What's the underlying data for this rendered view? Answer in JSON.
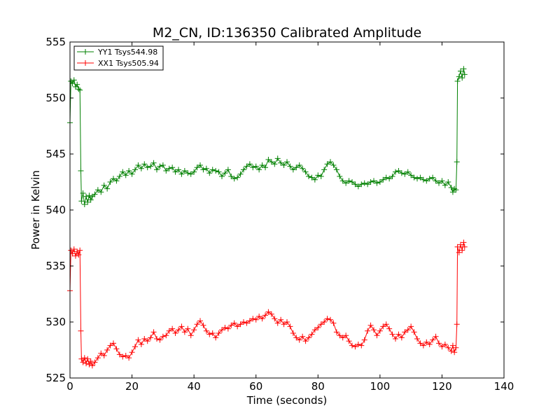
{
  "chart_data": {
    "type": "line",
    "title": "M2_CN, ID:136350 Calibrated Amplitude",
    "xlabel": "Time (seconds)",
    "ylabel": "Power in Kelvin",
    "xlim": [
      0,
      140
    ],
    "ylim": [
      525,
      555
    ],
    "xticks": [
      0,
      20,
      40,
      60,
      80,
      100,
      120,
      140
    ],
    "yticks": [
      525,
      530,
      535,
      540,
      545,
      550,
      555
    ],
    "grid": false,
    "legend_position": "top-left",
    "marker": "plus",
    "series": [
      {
        "name": "YY1 Tsys544.98",
        "color": "#008000",
        "points": [
          [
            0.0,
            547.8
          ],
          [
            0.3,
            551.5
          ],
          [
            0.8,
            551.3
          ],
          [
            1.3,
            551.6
          ],
          [
            1.8,
            551.0
          ],
          [
            2.3,
            551.2
          ],
          [
            2.8,
            550.8
          ],
          [
            3.2,
            550.7
          ],
          [
            3.5,
            543.5
          ],
          [
            3.7,
            540.8
          ],
          [
            4.2,
            541.5
          ],
          [
            4.7,
            540.5
          ],
          [
            5.2,
            541.2
          ],
          [
            5.7,
            540.7
          ],
          [
            6.2,
            541.3
          ],
          [
            6.7,
            540.9
          ],
          [
            7.2,
            541.2
          ],
          [
            8.0,
            541.4
          ],
          [
            9.0,
            541.8
          ],
          [
            10.0,
            541.6
          ],
          [
            11.0,
            542.2
          ],
          [
            12.0,
            541.9
          ],
          [
            13.0,
            542.5
          ],
          [
            14.0,
            542.8
          ],
          [
            15.0,
            542.6
          ],
          [
            16.0,
            543.0
          ],
          [
            17.0,
            543.4
          ],
          [
            18.0,
            543.1
          ],
          [
            19.0,
            543.5
          ],
          [
            20.0,
            543.2
          ],
          [
            21.0,
            543.6
          ],
          [
            22.0,
            544.0
          ],
          [
            23.0,
            543.7
          ],
          [
            24.0,
            544.1
          ],
          [
            25.0,
            543.8
          ],
          [
            26.0,
            543.9
          ],
          [
            27.0,
            544.2
          ],
          [
            28.0,
            543.6
          ],
          [
            29.0,
            543.9
          ],
          [
            30.0,
            544.0
          ],
          [
            31.0,
            543.5
          ],
          [
            32.0,
            543.7
          ],
          [
            33.0,
            543.8
          ],
          [
            34.0,
            543.4
          ],
          [
            35.0,
            543.6
          ],
          [
            36.0,
            543.2
          ],
          [
            37.0,
            543.5
          ],
          [
            38.0,
            543.3
          ],
          [
            39.0,
            543.2
          ],
          [
            40.0,
            543.4
          ],
          [
            41.0,
            543.8
          ],
          [
            42.0,
            544.0
          ],
          [
            43.0,
            543.6
          ],
          [
            44.0,
            543.7
          ],
          [
            45.0,
            543.3
          ],
          [
            46.0,
            543.6
          ],
          [
            47.0,
            543.5
          ],
          [
            48.0,
            543.4
          ],
          [
            49.0,
            543.0
          ],
          [
            50.0,
            543.3
          ],
          [
            51.0,
            543.6
          ],
          [
            52.0,
            543.0
          ],
          [
            53.0,
            542.8
          ],
          [
            54.0,
            542.9
          ],
          [
            55.0,
            543.2
          ],
          [
            56.0,
            543.6
          ],
          [
            57.0,
            543.9
          ],
          [
            58.0,
            544.1
          ],
          [
            59.0,
            543.8
          ],
          [
            60.0,
            543.9
          ],
          [
            61.0,
            543.6
          ],
          [
            62.0,
            544.0
          ],
          [
            63.0,
            543.8
          ],
          [
            64.0,
            544.5
          ],
          [
            65.0,
            544.3
          ],
          [
            66.0,
            544.1
          ],
          [
            67.0,
            544.6
          ],
          [
            68.0,
            544.2
          ],
          [
            69.0,
            544.0
          ],
          [
            70.0,
            544.3
          ],
          [
            71.0,
            543.9
          ],
          [
            72.0,
            543.6
          ],
          [
            73.0,
            543.8
          ],
          [
            74.0,
            544.0
          ],
          [
            75.0,
            543.7
          ],
          [
            76.0,
            543.4
          ],
          [
            77.0,
            543.0
          ],
          [
            78.0,
            542.9
          ],
          [
            79.0,
            542.7
          ],
          [
            80.0,
            543.1
          ],
          [
            81.0,
            543.0
          ],
          [
            82.0,
            543.6
          ],
          [
            83.0,
            544.1
          ],
          [
            84.0,
            544.3
          ],
          [
            85.0,
            544.0
          ],
          [
            86.0,
            543.6
          ],
          [
            87.0,
            543.0
          ],
          [
            88.0,
            542.6
          ],
          [
            89.0,
            542.4
          ],
          [
            90.0,
            542.6
          ],
          [
            91.0,
            542.5
          ],
          [
            92.0,
            542.3
          ],
          [
            93.0,
            542.1
          ],
          [
            94.0,
            542.3
          ],
          [
            95.0,
            542.4
          ],
          [
            96.0,
            542.3
          ],
          [
            97.0,
            542.5
          ],
          [
            98.0,
            542.6
          ],
          [
            99.0,
            542.4
          ],
          [
            100.0,
            542.5
          ],
          [
            101.0,
            542.7
          ],
          [
            102.0,
            542.9
          ],
          [
            103.0,
            542.8
          ],
          [
            104.0,
            543.0
          ],
          [
            105.0,
            543.4
          ],
          [
            106.0,
            543.5
          ],
          [
            107.0,
            543.3
          ],
          [
            108.0,
            543.2
          ],
          [
            109.0,
            543.4
          ],
          [
            110.0,
            543.1
          ],
          [
            111.0,
            542.9
          ],
          [
            112.0,
            542.8
          ],
          [
            113.0,
            542.9
          ],
          [
            114.0,
            542.7
          ],
          [
            115.0,
            542.6
          ],
          [
            116.0,
            542.8
          ],
          [
            117.0,
            542.9
          ],
          [
            118.0,
            542.6
          ],
          [
            119.0,
            542.4
          ],
          [
            120.0,
            542.6
          ],
          [
            121.0,
            542.2
          ],
          [
            122.0,
            542.5
          ],
          [
            123.0,
            542.0
          ],
          [
            123.5,
            541.6
          ],
          [
            124.0,
            541.9
          ],
          [
            124.5,
            541.8
          ],
          [
            124.8,
            544.3
          ],
          [
            125.0,
            551.5
          ],
          [
            125.5,
            551.9
          ],
          [
            126.0,
            552.4
          ],
          [
            126.5,
            551.8
          ],
          [
            127.0,
            552.6
          ],
          [
            127.3,
            552.1
          ]
        ]
      },
      {
        "name": "XX1 Tsys505.94",
        "color": "#ff0000",
        "points": [
          [
            0.0,
            532.8
          ],
          [
            0.3,
            536.4
          ],
          [
            0.8,
            536.1
          ],
          [
            1.3,
            536.5
          ],
          [
            1.8,
            535.9
          ],
          [
            2.3,
            536.3
          ],
          [
            2.8,
            536.0
          ],
          [
            3.2,
            536.4
          ],
          [
            3.5,
            529.2
          ],
          [
            3.7,
            526.7
          ],
          [
            4.2,
            526.4
          ],
          [
            4.7,
            526.8
          ],
          [
            5.2,
            526.3
          ],
          [
            5.7,
            526.7
          ],
          [
            6.2,
            526.2
          ],
          [
            6.7,
            526.5
          ],
          [
            7.2,
            526.1
          ],
          [
            8.0,
            526.4
          ],
          [
            9.0,
            526.8
          ],
          [
            10.0,
            527.2
          ],
          [
            11.0,
            527.0
          ],
          [
            12.0,
            527.5
          ],
          [
            13.0,
            527.9
          ],
          [
            14.0,
            528.1
          ],
          [
            15.0,
            527.6
          ],
          [
            16.0,
            527.1
          ],
          [
            17.0,
            526.9
          ],
          [
            18.0,
            527.0
          ],
          [
            19.0,
            526.8
          ],
          [
            20.0,
            527.3
          ],
          [
            21.0,
            527.8
          ],
          [
            22.0,
            528.4
          ],
          [
            23.0,
            528.0
          ],
          [
            24.0,
            528.5
          ],
          [
            25.0,
            528.3
          ],
          [
            26.0,
            528.6
          ],
          [
            27.0,
            529.1
          ],
          [
            28.0,
            528.5
          ],
          [
            29.0,
            528.4
          ],
          [
            30.0,
            528.7
          ],
          [
            31.0,
            528.8
          ],
          [
            32.0,
            529.2
          ],
          [
            33.0,
            529.4
          ],
          [
            34.0,
            529.0
          ],
          [
            35.0,
            529.3
          ],
          [
            36.0,
            529.6
          ],
          [
            37.0,
            529.1
          ],
          [
            38.0,
            529.4
          ],
          [
            39.0,
            528.8
          ],
          [
            40.0,
            529.3
          ],
          [
            41.0,
            529.8
          ],
          [
            42.0,
            530.1
          ],
          [
            43.0,
            529.7
          ],
          [
            44.0,
            529.2
          ],
          [
            45.0,
            528.9
          ],
          [
            46.0,
            529.0
          ],
          [
            47.0,
            528.6
          ],
          [
            48.0,
            529.0
          ],
          [
            49.0,
            529.3
          ],
          [
            50.0,
            529.5
          ],
          [
            51.0,
            529.4
          ],
          [
            52.0,
            529.7
          ],
          [
            53.0,
            529.9
          ],
          [
            54.0,
            529.6
          ],
          [
            55.0,
            529.8
          ],
          [
            56.0,
            530.0
          ],
          [
            57.0,
            529.9
          ],
          [
            58.0,
            530.1
          ],
          [
            59.0,
            530.3
          ],
          [
            60.0,
            530.2
          ],
          [
            61.0,
            530.5
          ],
          [
            62.0,
            530.3
          ],
          [
            63.0,
            530.6
          ],
          [
            64.0,
            530.9
          ],
          [
            65.0,
            530.7
          ],
          [
            66.0,
            530.3
          ],
          [
            67.0,
            529.9
          ],
          [
            68.0,
            530.2
          ],
          [
            69.0,
            529.8
          ],
          [
            70.0,
            530.0
          ],
          [
            71.0,
            529.6
          ],
          [
            72.0,
            529.0
          ],
          [
            73.0,
            528.6
          ],
          [
            74.0,
            528.4
          ],
          [
            75.0,
            528.7
          ],
          [
            76.0,
            528.3
          ],
          [
            77.0,
            528.6
          ],
          [
            78.0,
            528.9
          ],
          [
            79.0,
            529.3
          ],
          [
            80.0,
            529.5
          ],
          [
            81.0,
            529.8
          ],
          [
            82.0,
            530.0
          ],
          [
            83.0,
            530.3
          ],
          [
            84.0,
            530.2
          ],
          [
            85.0,
            529.9
          ],
          [
            86.0,
            529.1
          ],
          [
            87.0,
            528.8
          ],
          [
            88.0,
            528.6
          ],
          [
            89.0,
            528.8
          ],
          [
            90.0,
            528.3
          ],
          [
            91.0,
            527.9
          ],
          [
            92.0,
            527.8
          ],
          [
            93.0,
            528.0
          ],
          [
            94.0,
            527.9
          ],
          [
            95.0,
            528.4
          ],
          [
            96.0,
            529.2
          ],
          [
            97.0,
            529.7
          ],
          [
            98.0,
            529.3
          ],
          [
            99.0,
            528.8
          ],
          [
            100.0,
            529.2
          ],
          [
            101.0,
            529.6
          ],
          [
            102.0,
            529.8
          ],
          [
            103.0,
            529.4
          ],
          [
            104.0,
            528.9
          ],
          [
            105.0,
            528.5
          ],
          [
            106.0,
            528.9
          ],
          [
            107.0,
            528.6
          ],
          [
            108.0,
            529.1
          ],
          [
            109.0,
            529.3
          ],
          [
            110.0,
            529.6
          ],
          [
            111.0,
            529.1
          ],
          [
            112.0,
            528.5
          ],
          [
            113.0,
            528.1
          ],
          [
            114.0,
            527.9
          ],
          [
            115.0,
            528.2
          ],
          [
            116.0,
            528.0
          ],
          [
            117.0,
            528.4
          ],
          [
            118.0,
            528.7
          ],
          [
            119.0,
            528.1
          ],
          [
            120.0,
            527.8
          ],
          [
            121.0,
            528.0
          ],
          [
            122.0,
            527.7
          ],
          [
            123.0,
            527.4
          ],
          [
            123.5,
            527.9
          ],
          [
            124.0,
            527.3
          ],
          [
            124.5,
            527.7
          ],
          [
            124.8,
            529.8
          ],
          [
            125.0,
            536.7
          ],
          [
            125.5,
            536.2
          ],
          [
            126.0,
            536.9
          ],
          [
            126.5,
            536.4
          ],
          [
            127.0,
            537.1
          ],
          [
            127.3,
            536.7
          ]
        ]
      }
    ]
  }
}
